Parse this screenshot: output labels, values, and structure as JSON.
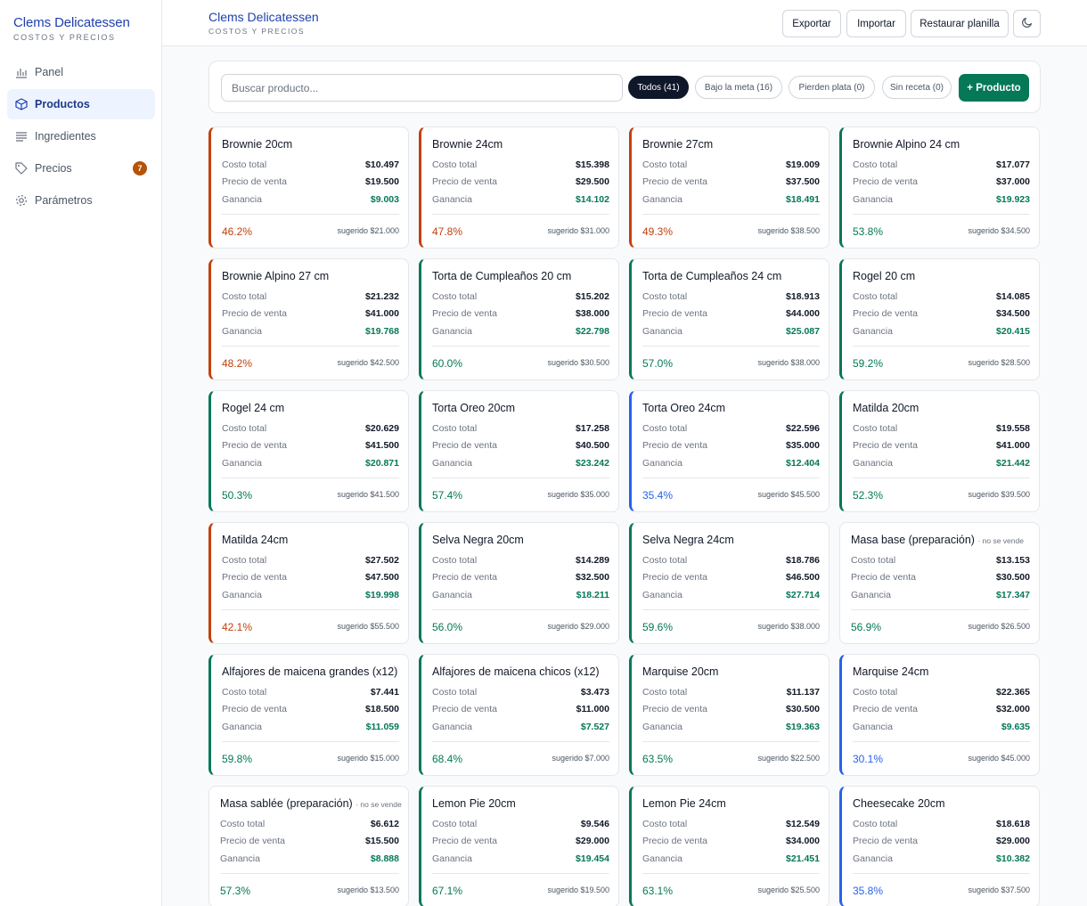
{
  "app": {
    "name": "Clems Delicatessen",
    "subtitle": "COSTOS Y PRECIOS"
  },
  "sidebar": {
    "items": [
      {
        "label": "Panel",
        "icon": "bar-chart-icon"
      },
      {
        "label": "Productos",
        "icon": "box-icon",
        "active": true
      },
      {
        "label": "Ingredientes",
        "icon": "list-icon"
      },
      {
        "label": "Precios",
        "icon": "tag-icon",
        "badge": "7"
      },
      {
        "label": "Parámetros",
        "icon": "gear-icon"
      }
    ]
  },
  "header": {
    "title": "Clems Delicatessen",
    "subtitle": "COSTOS Y PRECIOS",
    "export_label": "Exportar",
    "import_label": "Importar",
    "restore_label": "Restaurar planilla",
    "theme_icon": "moon-icon"
  },
  "toolbar": {
    "search_placeholder": "Buscar producto...",
    "filters": [
      {
        "label": "Todos (41)",
        "active": true
      },
      {
        "label": "Bajo la meta (16)"
      },
      {
        "label": "Pierden plata (0)"
      },
      {
        "label": "Sin receta (0)"
      }
    ],
    "add_label": "+ Producto"
  },
  "labels": {
    "cost": "Costo total",
    "price": "Precio de venta",
    "gain": "Ganancia"
  },
  "colors": {
    "orange": "#c2410c",
    "green": "#047857",
    "blue": "#2563eb",
    "brand": "#1e40af"
  },
  "products": [
    {
      "name": "Brownie 20cm",
      "cost": "$10.497",
      "price": "$19.500",
      "gain": "$9.003",
      "margin": "46.2%",
      "suggested": "sugerido $21.000",
      "status": "orange"
    },
    {
      "name": "Brownie 24cm",
      "cost": "$15.398",
      "price": "$29.500",
      "gain": "$14.102",
      "margin": "47.8%",
      "suggested": "sugerido $31.000",
      "status": "orange"
    },
    {
      "name": "Brownie 27cm",
      "cost": "$19.009",
      "price": "$37.500",
      "gain": "$18.491",
      "margin": "49.3%",
      "suggested": "sugerido $38.500",
      "status": "orange"
    },
    {
      "name": "Brownie Alpino 24 cm",
      "cost": "$17.077",
      "price": "$37.000",
      "gain": "$19.923",
      "margin": "53.8%",
      "suggested": "sugerido $34.500",
      "status": "green"
    },
    {
      "name": "Brownie Alpino 27 cm",
      "cost": "$21.232",
      "price": "$41.000",
      "gain": "$19.768",
      "margin": "48.2%",
      "suggested": "sugerido $42.500",
      "status": "orange"
    },
    {
      "name": "Torta de Cumpleaños 20 cm",
      "cost": "$15.202",
      "price": "$38.000",
      "gain": "$22.798",
      "margin": "60.0%",
      "suggested": "sugerido $30.500",
      "status": "green"
    },
    {
      "name": "Torta de Cumpleaños 24 cm",
      "cost": "$18.913",
      "price": "$44.000",
      "gain": "$25.087",
      "margin": "57.0%",
      "suggested": "sugerido $38.000",
      "status": "green"
    },
    {
      "name": "Rogel 20 cm",
      "cost": "$14.085",
      "price": "$34.500",
      "gain": "$20.415",
      "margin": "59.2%",
      "suggested": "sugerido $28.500",
      "status": "green"
    },
    {
      "name": "Rogel 24 cm",
      "cost": "$20.629",
      "price": "$41.500",
      "gain": "$20.871",
      "margin": "50.3%",
      "suggested": "sugerido $41.500",
      "status": "green"
    },
    {
      "name": "Torta Oreo 20cm",
      "cost": "$17.258",
      "price": "$40.500",
      "gain": "$23.242",
      "margin": "57.4%",
      "suggested": "sugerido $35.000",
      "status": "green"
    },
    {
      "name": "Torta Oreo 24cm",
      "cost": "$22.596",
      "price": "$35.000",
      "gain": "$12.404",
      "margin": "35.4%",
      "suggested": "sugerido $45.500",
      "status": "blue"
    },
    {
      "name": "Matilda 20cm",
      "cost": "$19.558",
      "price": "$41.000",
      "gain": "$21.442",
      "margin": "52.3%",
      "suggested": "sugerido $39.500",
      "status": "green"
    },
    {
      "name": "Matilda 24cm",
      "cost": "$27.502",
      "price": "$47.500",
      "gain": "$19.998",
      "margin": "42.1%",
      "suggested": "sugerido $55.500",
      "status": "orange"
    },
    {
      "name": "Selva Negra 20cm",
      "cost": "$14.289",
      "price": "$32.500",
      "gain": "$18.211",
      "margin": "56.0%",
      "suggested": "sugerido $29.000",
      "status": "green"
    },
    {
      "name": "Selva Negra 24cm",
      "cost": "$18.786",
      "price": "$46.500",
      "gain": "$27.714",
      "margin": "59.6%",
      "suggested": "sugerido $38.000",
      "status": "green"
    },
    {
      "name": "Masa base (preparación)",
      "note": "· no se vende",
      "cost": "$13.153",
      "price": "$30.500",
      "gain": "$17.347",
      "margin": "56.9%",
      "suggested": "sugerido $26.500",
      "status": "neutral"
    },
    {
      "name": "Alfajores de maicena grandes (x12)",
      "cost": "$7.441",
      "price": "$18.500",
      "gain": "$11.059",
      "margin": "59.8%",
      "suggested": "sugerido $15.000",
      "status": "green"
    },
    {
      "name": "Alfajores de maicena chicos (x12)",
      "cost": "$3.473",
      "price": "$11.000",
      "gain": "$7.527",
      "margin": "68.4%",
      "suggested": "sugerido $7.000",
      "status": "green"
    },
    {
      "name": "Marquise 20cm",
      "cost": "$11.137",
      "price": "$30.500",
      "gain": "$19.363",
      "margin": "63.5%",
      "suggested": "sugerido $22.500",
      "status": "green"
    },
    {
      "name": "Marquise 24cm",
      "cost": "$22.365",
      "price": "$32.000",
      "gain": "$9.635",
      "margin": "30.1%",
      "suggested": "sugerido $45.000",
      "status": "blue"
    },
    {
      "name": "Masa sablée (preparación)",
      "note": "· no se vende",
      "cost": "$6.612",
      "price": "$15.500",
      "gain": "$8.888",
      "margin": "57.3%",
      "suggested": "sugerido $13.500",
      "status": "neutral"
    },
    {
      "name": "Lemon Pie 20cm",
      "cost": "$9.546",
      "price": "$29.000",
      "gain": "$19.454",
      "margin": "67.1%",
      "suggested": "sugerido $19.500",
      "status": "green"
    },
    {
      "name": "Lemon Pie 24cm",
      "cost": "$12.549",
      "price": "$34.000",
      "gain": "$21.451",
      "margin": "63.1%",
      "suggested": "sugerido $25.500",
      "status": "green"
    },
    {
      "name": "Cheesecake 20cm",
      "cost": "$18.618",
      "price": "$29.000",
      "gain": "$10.382",
      "margin": "35.8%",
      "suggested": "sugerido $37.500",
      "status": "blue"
    }
  ]
}
